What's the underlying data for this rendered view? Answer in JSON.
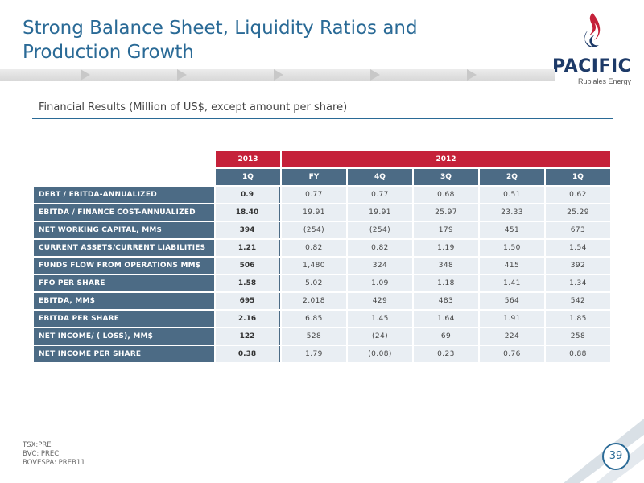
{
  "slide": {
    "title": "Strong Balance Sheet,  Liquidity Ratios and Production Growth",
    "section_title": "Financial Results (Million of US$, except amount per share)",
    "page_number": "39",
    "footer_lines": [
      "TSX:PRE",
      "BVC: PREC",
      "BOVESPA: PREB11"
    ]
  },
  "logo": {
    "name": "PACIFIC",
    "subtitle": "Rubiales Energy",
    "colors": {
      "flame_red": "#c5213a",
      "flame_blue": "#1d3a68"
    }
  },
  "colors": {
    "title": "#2a6a96",
    "header_red": "#c5213a",
    "header_blue": "#4c6b85",
    "cell_bg": "#e9eef3"
  },
  "table": {
    "year_headers": {
      "y2013": "2013",
      "y2012": "2012"
    },
    "period_headers": [
      "1Q",
      "FY",
      "4Q",
      "3Q",
      "2Q",
      "1Q"
    ],
    "rows": [
      {
        "label": "DEBT / EBITDA-ANNUALIZED",
        "values": [
          "0.9",
          "0.77",
          "0.77",
          "0.68",
          "0.51",
          "0.62"
        ]
      },
      {
        "label": "EBITDA / FINANCE COST-ANNUALIZED",
        "values": [
          "18.40",
          "19.91",
          "19.91",
          "25.97",
          "23.33",
          "25.29"
        ]
      },
      {
        "label": "NET WORKING CAPITAL, MM$",
        "values": [
          "394",
          "(254)",
          "(254)",
          "179",
          "451",
          "673"
        ]
      },
      {
        "label": "CURRENT ASSETS/CURRENT LIABILITIES",
        "values": [
          "1.21",
          "0.82",
          "0.82",
          "1.19",
          "1.50",
          "1.54"
        ]
      },
      {
        "label": "FUNDS FLOW FROM OPERATIONS MM$",
        "values": [
          "506",
          "1,480",
          "324",
          "348",
          "415",
          "392"
        ]
      },
      {
        "label": "FFO PER SHARE",
        "values": [
          "1.58",
          "5.02",
          "1.09",
          "1.18",
          "1.41",
          "1.34"
        ]
      },
      {
        "label": "EBITDA, MM$",
        "values": [
          "695",
          "2,018",
          "429",
          "483",
          "564",
          "542"
        ]
      },
      {
        "label": "EBITDA PER SHARE",
        "values": [
          "2.16",
          "6.85",
          "1.45",
          "1.64",
          "1.91",
          "1.85"
        ]
      },
      {
        "label": "NET INCOME/ ( LOSS), MM$",
        "values": [
          "122",
          "528",
          "(24)",
          "69",
          "224",
          "258"
        ]
      },
      {
        "label": "NET INCOME PER SHARE",
        "values": [
          "0.38",
          "1.79",
          "(0.08)",
          "0.23",
          "0.76",
          "0.88"
        ]
      }
    ]
  }
}
